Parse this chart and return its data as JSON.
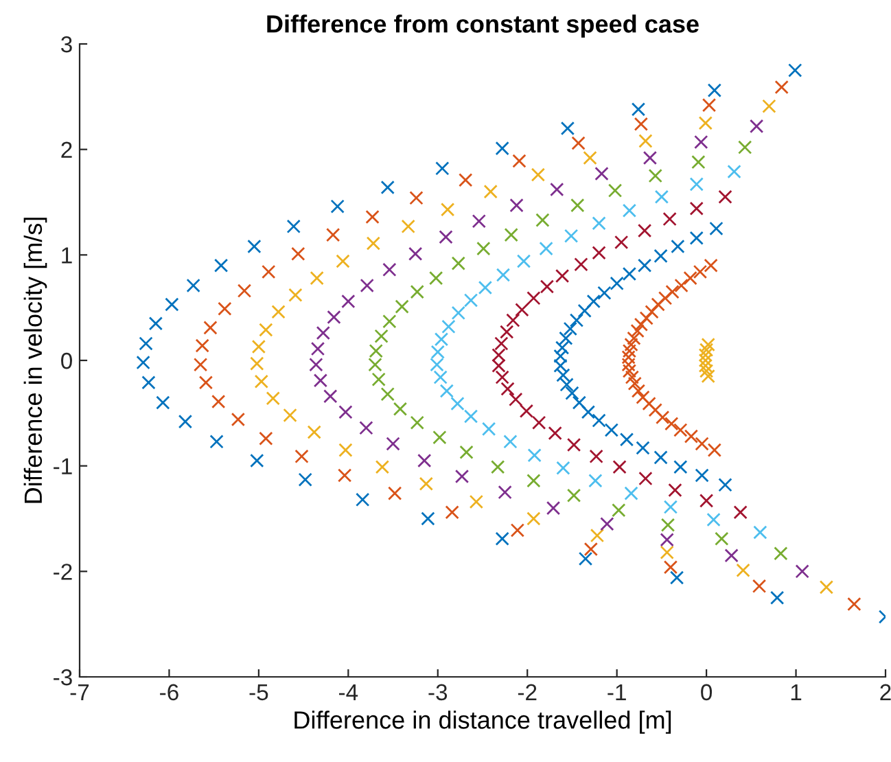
{
  "chart_data": {
    "type": "scatter",
    "title": "Difference from constant speed case",
    "xlabel": "Difference in distance travelled [m]",
    "ylabel": "Difference in velocity [m/s]",
    "xlim": [
      -7,
      2
    ],
    "xticks": [
      -7,
      -6,
      -5,
      -4,
      -3,
      -2,
      -1,
      0,
      1,
      2
    ],
    "ylim": [
      -3,
      3
    ],
    "yticks": [
      -3,
      -2,
      -1,
      0,
      1,
      2,
      3
    ],
    "grid": false,
    "marker": "cross",
    "series": [
      {
        "color": "#0072bd",
        "x": [
          0.99,
          0.09,
          -0.76,
          -1.55,
          -2.28,
          -2.95,
          -3.56,
          -4.12,
          -4.61,
          -5.05,
          -5.42,
          -5.73,
          -5.97,
          -6.15,
          -6.26,
          -6.29,
          -6.23,
          -6.07,
          -5.82,
          -5.47,
          -5.02,
          -4.48,
          -3.84,
          -3.11,
          -2.28,
          -1.35,
          -0.33,
          0.79,
          2.0
        ],
        "values": [
          2.75,
          2.56,
          2.38,
          2.2,
          2.01,
          1.82,
          1.64,
          1.46,
          1.27,
          1.08,
          0.9,
          0.71,
          0.53,
          0.35,
          0.16,
          -0.02,
          -0.21,
          -0.4,
          -0.58,
          -0.77,
          -0.95,
          -1.13,
          -1.32,
          -1.5,
          -1.69,
          -1.88,
          -2.06,
          -2.25,
          -2.43
        ]
      },
      {
        "color": "#d95319",
        "x": [
          0.84,
          0.03,
          -0.73,
          -1.43,
          -2.09,
          -2.69,
          -3.24,
          -3.73,
          -4.17,
          -4.56,
          -4.89,
          -5.16,
          -5.38,
          -5.54,
          -5.63,
          -5.65,
          -5.59,
          -5.45,
          -5.23,
          -4.92,
          -4.52,
          -4.04,
          -3.48,
          -2.84,
          -2.11,
          -1.29,
          -0.4,
          0.59,
          1.65
        ],
        "values": [
          2.59,
          2.42,
          2.24,
          2.06,
          1.89,
          1.71,
          1.54,
          1.36,
          1.19,
          1.01,
          0.84,
          0.66,
          0.49,
          0.31,
          0.14,
          -0.04,
          -0.21,
          -0.39,
          -0.56,
          -0.74,
          -0.91,
          -1.09,
          -1.26,
          -1.44,
          -1.61,
          -1.79,
          -1.96,
          -2.14,
          -2.31
        ]
      },
      {
        "color": "#edb120",
        "x": [
          0.7,
          -0.01,
          -0.68,
          -1.3,
          -1.88,
          -2.41,
          -2.89,
          -3.33,
          -3.72,
          -4.06,
          -4.35,
          -4.59,
          -4.78,
          -4.92,
          -5.0,
          -5.02,
          -4.97,
          -4.84,
          -4.65,
          -4.38,
          -4.03,
          -3.62,
          -3.13,
          -2.57,
          -1.93,
          -1.22,
          -0.44,
          0.41,
          1.34
        ],
        "values": [
          2.41,
          2.25,
          2.08,
          1.92,
          1.76,
          1.6,
          1.43,
          1.27,
          1.11,
          0.94,
          0.78,
          0.62,
          0.46,
          0.29,
          0.13,
          -0.03,
          -0.2,
          -0.36,
          -0.52,
          -0.68,
          -0.85,
          -1.01,
          -1.17,
          -1.34,
          -1.5,
          -1.66,
          -1.82,
          -1.99,
          -2.15
        ]
      },
      {
        "color": "#7e2f8e",
        "x": [
          0.56,
          -0.06,
          -0.63,
          -1.17,
          -1.67,
          -2.12,
          -2.54,
          -2.91,
          -3.25,
          -3.54,
          -3.79,
          -4.0,
          -4.16,
          -4.28,
          -4.34,
          -4.36,
          -4.31,
          -4.2,
          -4.03,
          -3.8,
          -3.5,
          -3.15,
          -2.73,
          -2.25,
          -1.71,
          -1.11,
          -0.44,
          0.28,
          1.07
        ],
        "values": [
          2.22,
          2.07,
          1.92,
          1.77,
          1.62,
          1.47,
          1.32,
          1.17,
          1.01,
          0.86,
          0.71,
          0.56,
          0.41,
          0.26,
          0.11,
          -0.04,
          -0.19,
          -0.34,
          -0.49,
          -0.64,
          -0.79,
          -0.95,
          -1.1,
          -1.25,
          -1.4,
          -1.55,
          -1.7,
          -1.85,
          -2.0
        ]
      },
      {
        "color": "#77ac30",
        "x": [
          0.43,
          -0.09,
          -0.57,
          -1.02,
          -1.44,
          -1.83,
          -2.18,
          -2.49,
          -2.77,
          -3.02,
          -3.23,
          -3.4,
          -3.54,
          -3.63,
          -3.69,
          -3.7,
          -3.66,
          -3.56,
          -3.42,
          -3.23,
          -2.98,
          -2.68,
          -2.33,
          -1.93,
          -1.48,
          -0.98,
          -0.43,
          0.17,
          0.83
        ],
        "values": [
          2.02,
          1.88,
          1.75,
          1.61,
          1.47,
          1.33,
          1.19,
          1.06,
          0.92,
          0.78,
          0.65,
          0.51,
          0.37,
          0.23,
          0.09,
          -0.04,
          -0.18,
          -0.32,
          -0.46,
          -0.59,
          -0.73,
          -0.87,
          -1.01,
          -1.14,
          -1.28,
          -1.42,
          -1.56,
          -1.69,
          -1.83
        ]
      },
      {
        "color": "#4dbeee",
        "x": [
          0.31,
          -0.11,
          -0.5,
          -0.86,
          -1.2,
          -1.51,
          -1.79,
          -2.04,
          -2.27,
          -2.47,
          -2.63,
          -2.77,
          -2.88,
          -2.96,
          -3.0,
          -3.01,
          -2.97,
          -2.9,
          -2.78,
          -2.63,
          -2.43,
          -2.19,
          -1.92,
          -1.6,
          -1.24,
          -0.84,
          -0.4,
          0.08,
          0.6
        ],
        "values": [
          1.79,
          1.67,
          1.55,
          1.42,
          1.3,
          1.18,
          1.06,
          0.94,
          0.81,
          0.69,
          0.57,
          0.45,
          0.32,
          0.2,
          0.08,
          -0.04,
          -0.16,
          -0.29,
          -0.41,
          -0.53,
          -0.65,
          -0.77,
          -0.9,
          -1.02,
          -1.14,
          -1.26,
          -1.39,
          -1.51,
          -1.63
        ]
      },
      {
        "color": "#a2142f",
        "x": [
          0.21,
          -0.11,
          -0.41,
          -0.69,
          -0.95,
          -1.2,
          -1.4,
          -1.61,
          -1.78,
          -1.93,
          -2.06,
          -2.16,
          -2.23,
          -2.29,
          -2.32,
          -2.32,
          -2.28,
          -2.22,
          -2.13,
          -2.01,
          -1.87,
          -1.69,
          -1.48,
          -1.23,
          -0.97,
          -0.68,
          -0.35,
          0.0,
          0.38
        ],
        "values": [
          1.55,
          1.44,
          1.34,
          1.23,
          1.12,
          1.02,
          0.91,
          0.8,
          0.7,
          0.59,
          0.48,
          0.38,
          0.27,
          0.16,
          0.05,
          -0.05,
          -0.16,
          -0.27,
          -0.37,
          -0.48,
          -0.59,
          -0.69,
          -0.8,
          -0.91,
          -1.01,
          -1.12,
          -1.23,
          -1.33,
          -1.44
        ]
      },
      {
        "color": "#0072bd",
        "x": [
          0.11,
          -0.11,
          -0.32,
          -0.51,
          -0.69,
          -0.86,
          -1.0,
          -1.14,
          -1.26,
          -1.36,
          -1.45,
          -1.52,
          -1.57,
          -1.61,
          -1.63,
          -1.63,
          -1.6,
          -1.56,
          -1.5,
          -1.42,
          -1.32,
          -1.2,
          -1.06,
          -0.89,
          -0.71,
          -0.51,
          -0.29,
          -0.05,
          0.21
        ],
        "values": [
          1.25,
          1.16,
          1.08,
          0.99,
          0.9,
          0.82,
          0.73,
          0.64,
          0.56,
          0.47,
          0.38,
          0.3,
          0.21,
          0.12,
          0.04,
          -0.05,
          -0.14,
          -0.23,
          -0.31,
          -0.4,
          -0.49,
          -0.57,
          -0.66,
          -0.75,
          -0.83,
          -0.92,
          -1.01,
          -1.09,
          -1.18
        ]
      },
      {
        "color": "#d95319",
        "x": [
          0.05,
          -0.07,
          -0.18,
          -0.28,
          -0.38,
          -0.46,
          -0.54,
          -0.61,
          -0.67,
          -0.73,
          -0.77,
          -0.81,
          -0.84,
          -0.86,
          -0.87,
          -0.87,
          -0.86,
          -0.83,
          -0.8,
          -0.76,
          -0.71,
          -0.64,
          -0.57,
          -0.49,
          -0.39,
          -0.29,
          -0.17,
          -0.05,
          0.09
        ],
        "values": [
          0.9,
          0.84,
          0.78,
          0.71,
          0.65,
          0.59,
          0.53,
          0.46,
          0.4,
          0.34,
          0.28,
          0.21,
          0.15,
          0.09,
          0.03,
          -0.04,
          -0.1,
          -0.16,
          -0.22,
          -0.29,
          -0.35,
          -0.41,
          -0.47,
          -0.54,
          -0.6,
          -0.66,
          -0.72,
          -0.79,
          -0.85
        ]
      },
      {
        "color": "#edb120",
        "x": [
          0.02,
          0.0,
          -0.01,
          -0.01,
          -0.01,
          0.0,
          0.02
        ],
        "values": [
          0.15,
          0.1,
          0.05,
          0.0,
          -0.05,
          -0.1,
          -0.15
        ]
      }
    ]
  }
}
